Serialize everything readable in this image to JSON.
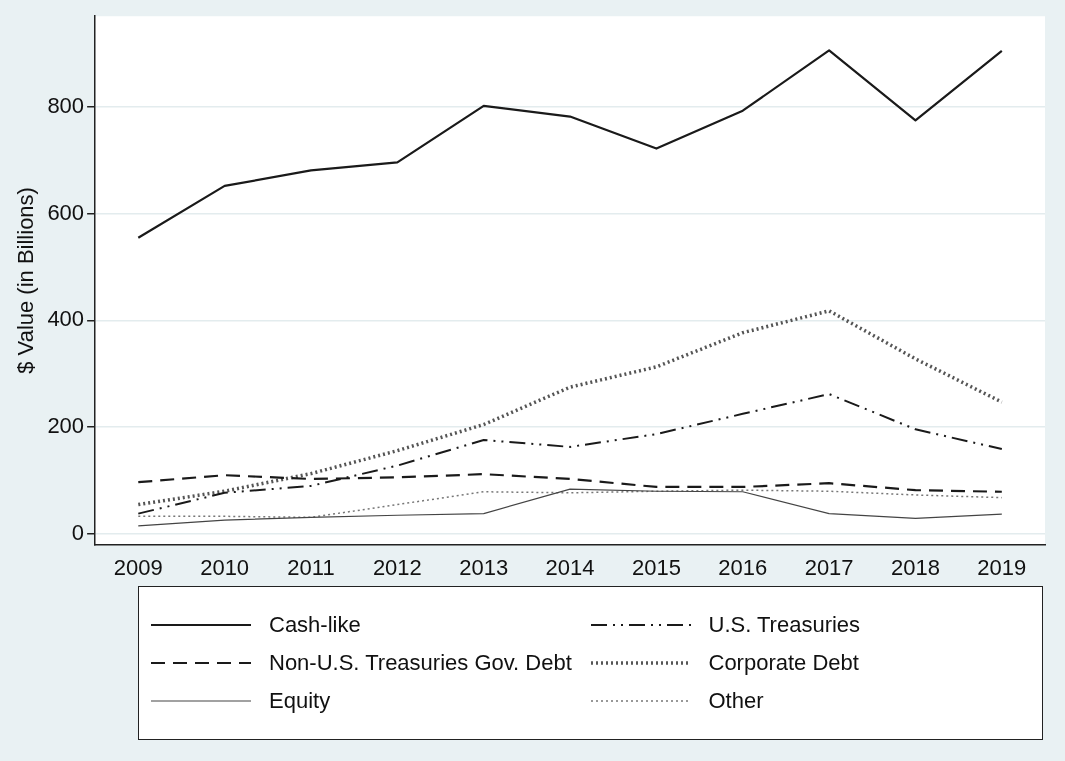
{
  "chart_data": {
    "type": "line",
    "ylabel": "$ Value (in Billions)",
    "categories": [
      "2009",
      "2010",
      "2011",
      "2012",
      "2013",
      "2014",
      "2015",
      "2016",
      "2017",
      "2018",
      "2019"
    ],
    "ylim": [
      -20,
      970
    ],
    "yticks": [
      0,
      200,
      400,
      600,
      800
    ],
    "grid": "y",
    "legend": "bottom",
    "marker": "none",
    "series": [
      {
        "name": "Cash-like",
        "color": "#1a1a1a",
        "line_style": "solid",
        "values": [
          555,
          652,
          681,
          696,
          802,
          782,
          722,
          793,
          906,
          775,
          905
        ]
      },
      {
        "name": "U.S. Treasuries",
        "color": "#1a1a1a",
        "line_style": "dashdot",
        "values": [
          38,
          77,
          90,
          128,
          176,
          163,
          187,
          225,
          262,
          196,
          159
        ]
      },
      {
        "name": "Non-U.S. Treasuries Gov. Debt",
        "color": "#1a1a1a",
        "line_style": "dashed",
        "values": [
          97,
          110,
          103,
          106,
          112,
          103,
          88,
          88,
          95,
          82,
          79
        ]
      },
      {
        "name": "Corporate Debt",
        "color": "#555555",
        "line_style": "dotted",
        "values": [
          55,
          80,
          113,
          156,
          205,
          275,
          313,
          377,
          418,
          328,
          247
        ]
      },
      {
        "name": "Equity",
        "color": "#444444",
        "line_style": "solid",
        "values": [
          15,
          26,
          31,
          35,
          38,
          84,
          80,
          79,
          38,
          29,
          37
        ]
      },
      {
        "name": "Other",
        "color": "#777777",
        "line_style": "dotted",
        "values": [
          33,
          33,
          31,
          55,
          79,
          77,
          80,
          82,
          80,
          73,
          68
        ]
      }
    ]
  }
}
